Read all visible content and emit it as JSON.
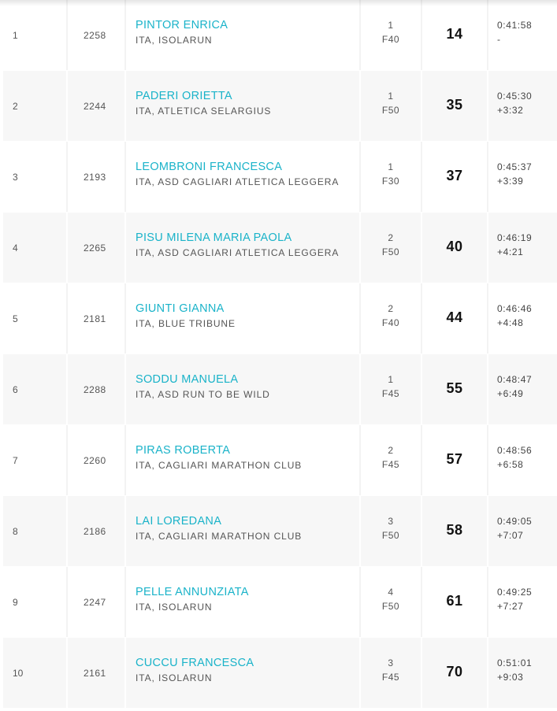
{
  "results": [
    {
      "pos": "1",
      "bib": "2258",
      "name": "PINTOR ENRICA",
      "club": "ITA, ISOLARUN",
      "cat_rank": "1",
      "category": "F40",
      "points": "14",
      "time": "0:41:58",
      "gap": "-"
    },
    {
      "pos": "2",
      "bib": "2244",
      "name": "PADERI ORIETTA",
      "club": "ITA, ATLETICA SELARGIUS",
      "cat_rank": "1",
      "category": "F50",
      "points": "35",
      "time": "0:45:30",
      "gap": "+3:32"
    },
    {
      "pos": "3",
      "bib": "2193",
      "name": "LEOMBRONI FRANCESCA",
      "club": "ITA, ASD CAGLIARI ATLETICA LEGGERA",
      "cat_rank": "1",
      "category": "F30",
      "points": "37",
      "time": "0:45:37",
      "gap": "+3:39"
    },
    {
      "pos": "4",
      "bib": "2265",
      "name": "PISU MILENA MARIA PAOLA",
      "club": "ITA, ASD CAGLIARI ATLETICA LEGGERA",
      "cat_rank": "2",
      "category": "F50",
      "points": "40",
      "time": "0:46:19",
      "gap": "+4:21"
    },
    {
      "pos": "5",
      "bib": "2181",
      "name": "GIUNTI GIANNA",
      "club": "ITA, BLUE TRIBUNE",
      "cat_rank": "2",
      "category": "F40",
      "points": "44",
      "time": "0:46:46",
      "gap": "+4:48"
    },
    {
      "pos": "6",
      "bib": "2288",
      "name": "SODDU MANUELA",
      "club": "ITA, ASD RUN TO BE WILD",
      "cat_rank": "1",
      "category": "F45",
      "points": "55",
      "time": "0:48:47",
      "gap": "+6:49"
    },
    {
      "pos": "7",
      "bib": "2260",
      "name": "PIRAS ROBERTA",
      "club": "ITA, CAGLIARI MARATHON CLUB",
      "cat_rank": "2",
      "category": "F45",
      "points": "57",
      "time": "0:48:56",
      "gap": "+6:58"
    },
    {
      "pos": "8",
      "bib": "2186",
      "name": "LAI LOREDANA",
      "club": "ITA, CAGLIARI MARATHON CLUB",
      "cat_rank": "3",
      "category": "F50",
      "points": "58",
      "time": "0:49:05",
      "gap": "+7:07"
    },
    {
      "pos": "9",
      "bib": "2247",
      "name": "PELLE ANNUNZIATA",
      "club": "ITA, ISOLARUN",
      "cat_rank": "4",
      "category": "F50",
      "points": "61",
      "time": "0:49:25",
      "gap": "+7:27"
    },
    {
      "pos": "10",
      "bib": "2161",
      "name": "CUCCU FRANCESCA",
      "club": "ITA, ISOLARUN",
      "cat_rank": "3",
      "category": "F45",
      "points": "70",
      "time": "0:51:01",
      "gap": "+9:03"
    }
  ],
  "colors": {
    "athlete_link": "#1ab3c9",
    "row_alt": "#f7f7f7",
    "row_base": "#ffffff",
    "points_text": "#111111"
  }
}
